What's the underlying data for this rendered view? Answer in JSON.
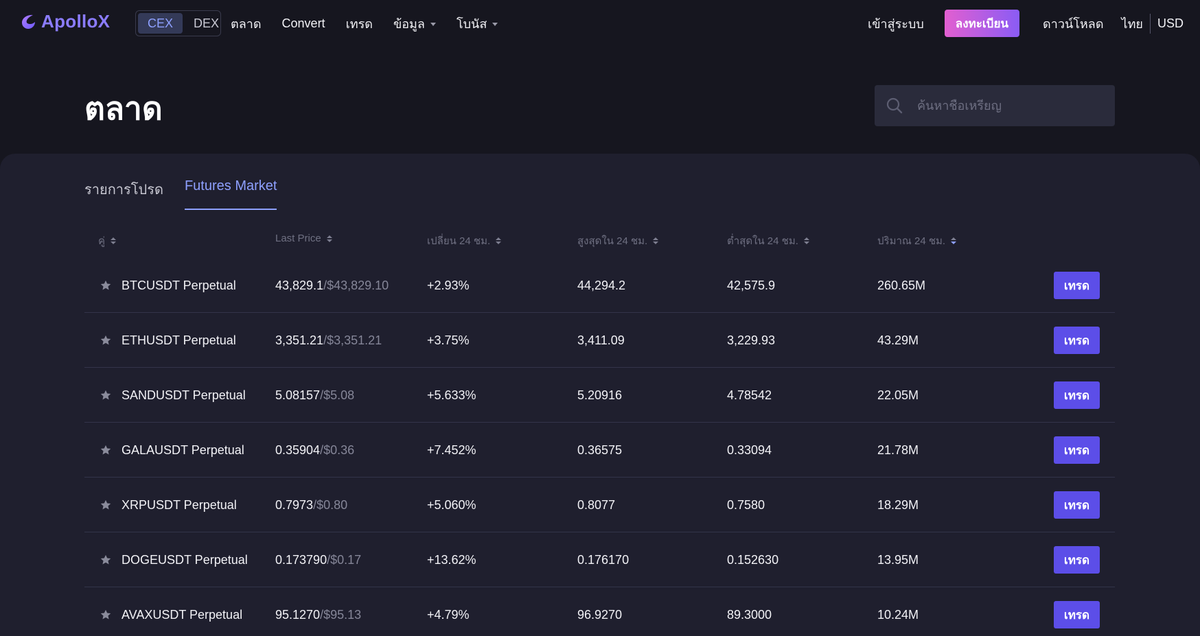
{
  "brand": {
    "name": "ApolloX",
    "color": "#8b7cff"
  },
  "nav": {
    "segment": [
      {
        "label": "CEX",
        "active": true
      },
      {
        "label": "DEX",
        "active": false
      }
    ],
    "links": [
      {
        "label": "ตลาด",
        "dropdown": false
      },
      {
        "label": "Convert",
        "dropdown": false
      },
      {
        "label": "เทรด",
        "dropdown": false
      },
      {
        "label": "ข้อมูล",
        "dropdown": true
      },
      {
        "label": "โบนัส",
        "dropdown": true
      }
    ],
    "login": "เข้าสู่ระบบ",
    "register": "ลงทะเบียน",
    "download": "ดาวน์โหลด",
    "language": "ไทย",
    "currency": "USD"
  },
  "page": {
    "title": "ตลาด",
    "search_placeholder": "ค้นหาชื่อเหรียญ"
  },
  "tabs": [
    {
      "label": "รายการโปรด",
      "active": false
    },
    {
      "label": "Futures Market",
      "active": true
    }
  ],
  "table": {
    "headers": {
      "pair": "คู่",
      "last_price": "Last Price",
      "change": "เปลี่ยน 24 ชม.",
      "high": "สูงสุดใน 24 ชม.",
      "low": "ต่ำสุดใน 24 ชม.",
      "volume": "ปริมาณ 24 ชม."
    },
    "sorted_column": "volume",
    "sort_direction": "desc",
    "trade_label": "เทรด",
    "rows": [
      {
        "pair": "BTCUSDT Perpetual",
        "price": "43,829.1",
        "price_usd": "/$43,829.10",
        "change": "+2.93%",
        "high": "44,294.2",
        "low": "42,575.9",
        "volume": "260.65M"
      },
      {
        "pair": "ETHUSDT Perpetual",
        "price": "3,351.21",
        "price_usd": "/$3,351.21",
        "change": "+3.75%",
        "high": "3,411.09",
        "low": "3,229.93",
        "volume": "43.29M"
      },
      {
        "pair": "SANDUSDT Perpetual",
        "price": "5.08157",
        "price_usd": "/$5.08",
        "change": "+5.633%",
        "high": "5.20916",
        "low": "4.78542",
        "volume": "22.05M"
      },
      {
        "pair": "GALAUSDT Perpetual",
        "price": "0.35904",
        "price_usd": "/$0.36",
        "change": "+7.452%",
        "high": "0.36575",
        "low": "0.33094",
        "volume": "21.78M"
      },
      {
        "pair": "XRPUSDT Perpetual",
        "price": "0.7973",
        "price_usd": "/$0.80",
        "change": "+5.060%",
        "high": "0.8077",
        "low": "0.7580",
        "volume": "18.29M"
      },
      {
        "pair": "DOGEUSDT Perpetual",
        "price": "0.173790",
        "price_usd": "/$0.17",
        "change": "+13.62%",
        "high": "0.176170",
        "low": "0.152630",
        "volume": "13.95M"
      },
      {
        "pair": "AVAXUSDT Perpetual",
        "price": "95.1270",
        "price_usd": "/$95.13",
        "change": "+4.79%",
        "high": "96.9270",
        "low": "89.3000",
        "volume": "10.24M"
      }
    ]
  },
  "colors": {
    "background": "#16161f",
    "panel": "#1f1f2e",
    "accent": "#8ea0ff",
    "positive": "#2bc39a",
    "trade_button": "#5c4ee8",
    "register_gradient": [
      "#e25fd0",
      "#8a5cf5"
    ]
  },
  "icons": [
    "logo-icon",
    "search-icon",
    "star-icon",
    "sort-icon",
    "chevron-down-icon"
  ]
}
